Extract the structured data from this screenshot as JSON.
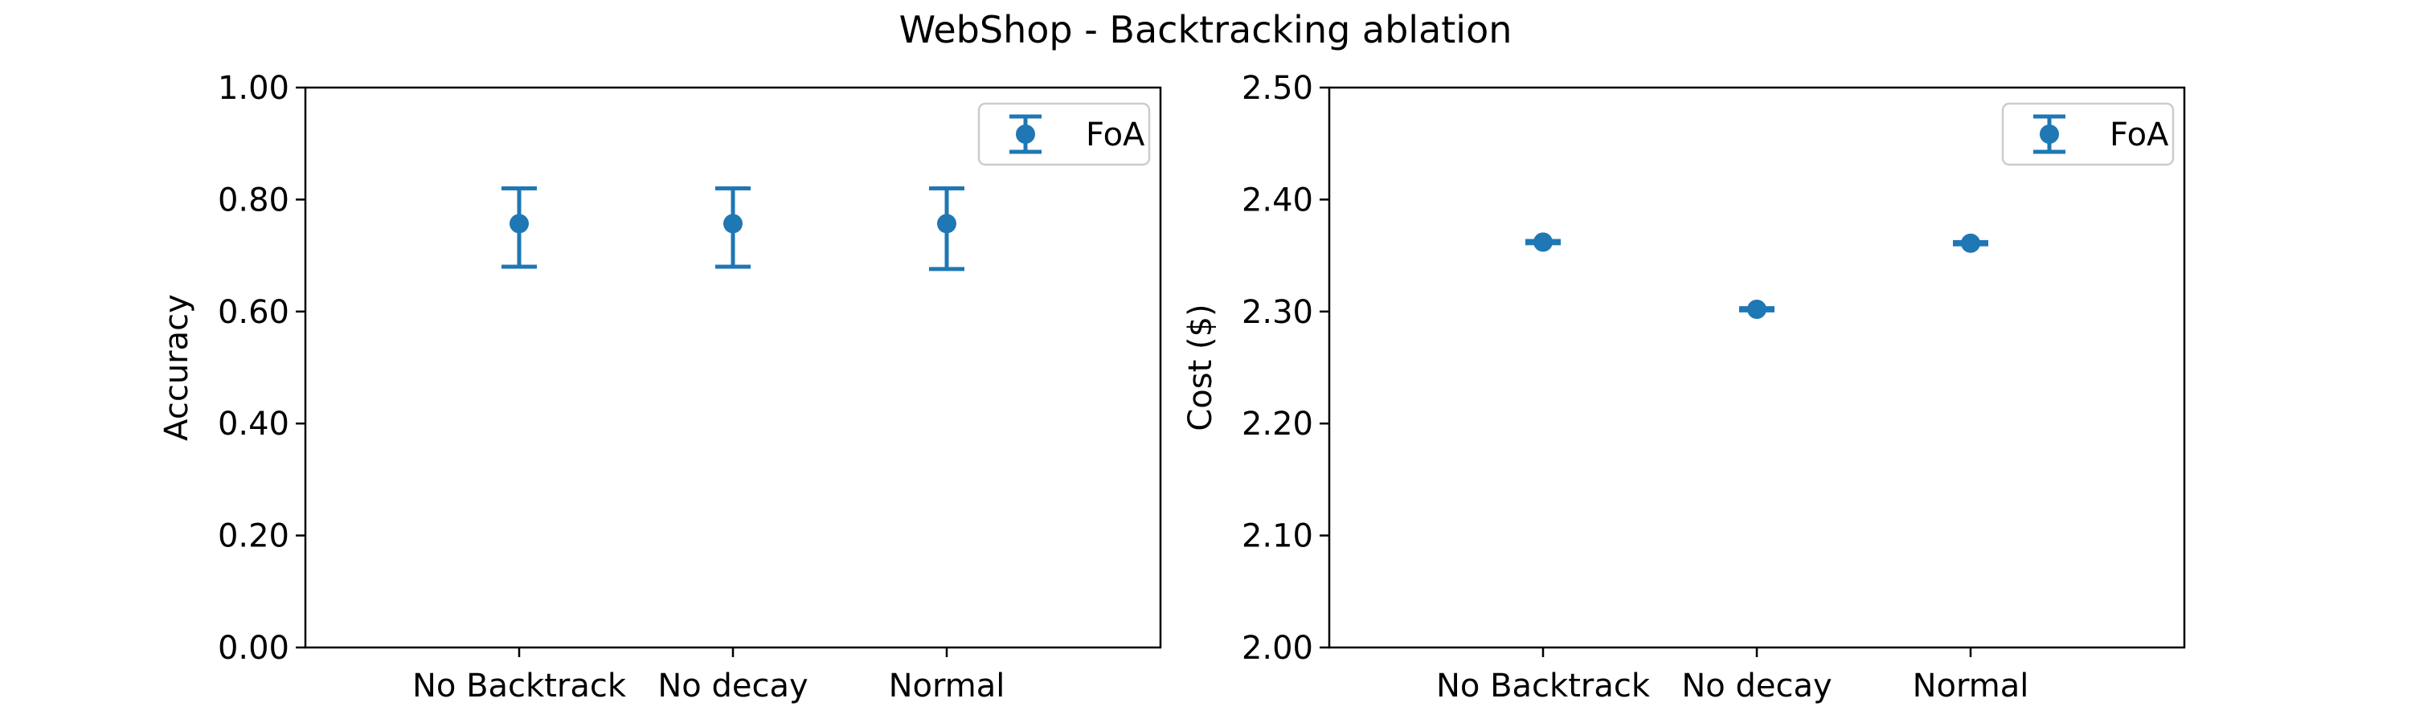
{
  "chart_data": {
    "title": "WebShop - Backtracking ablation",
    "color": "#1f77b4",
    "panels": [
      {
        "type": "scatter",
        "error_bars": true,
        "categories": [
          "No Backtrack",
          "No decay",
          "Normal"
        ],
        "ylabel": "Accuracy",
        "ylim": [
          0,
          1
        ],
        "yticks": [
          0.0,
          0.2,
          0.4,
          0.6,
          0.8,
          1.0
        ],
        "ytick_labels": [
          "0.00",
          "0.20",
          "0.40",
          "0.60",
          "0.80",
          "1.00"
        ],
        "legend": "top-right",
        "series": [
          {
            "name": "FoA",
            "values": [
              0.757,
              0.757,
              0.757
            ],
            "lower": [
              0.68,
              0.68,
              0.676
            ],
            "upper": [
              0.82,
              0.82,
              0.82
            ]
          }
        ]
      },
      {
        "type": "scatter",
        "error_bars": true,
        "categories": [
          "No Backtrack",
          "No decay",
          "Normal"
        ],
        "ylabel": "Cost ($)",
        "ylim": [
          2.0,
          2.5
        ],
        "yticks": [
          2.0,
          2.1,
          2.2,
          2.3,
          2.4,
          2.5
        ],
        "ytick_labels": [
          "2.00",
          "2.10",
          "2.20",
          "2.30",
          "2.40",
          "2.50"
        ],
        "legend": "top-right",
        "series": [
          {
            "name": "FoA",
            "values": [
              2.362,
              2.302,
              2.361
            ],
            "lower": [
              2.361,
              2.301,
              2.36
            ],
            "upper": [
              2.363,
              2.303,
              2.362
            ]
          }
        ]
      }
    ]
  }
}
